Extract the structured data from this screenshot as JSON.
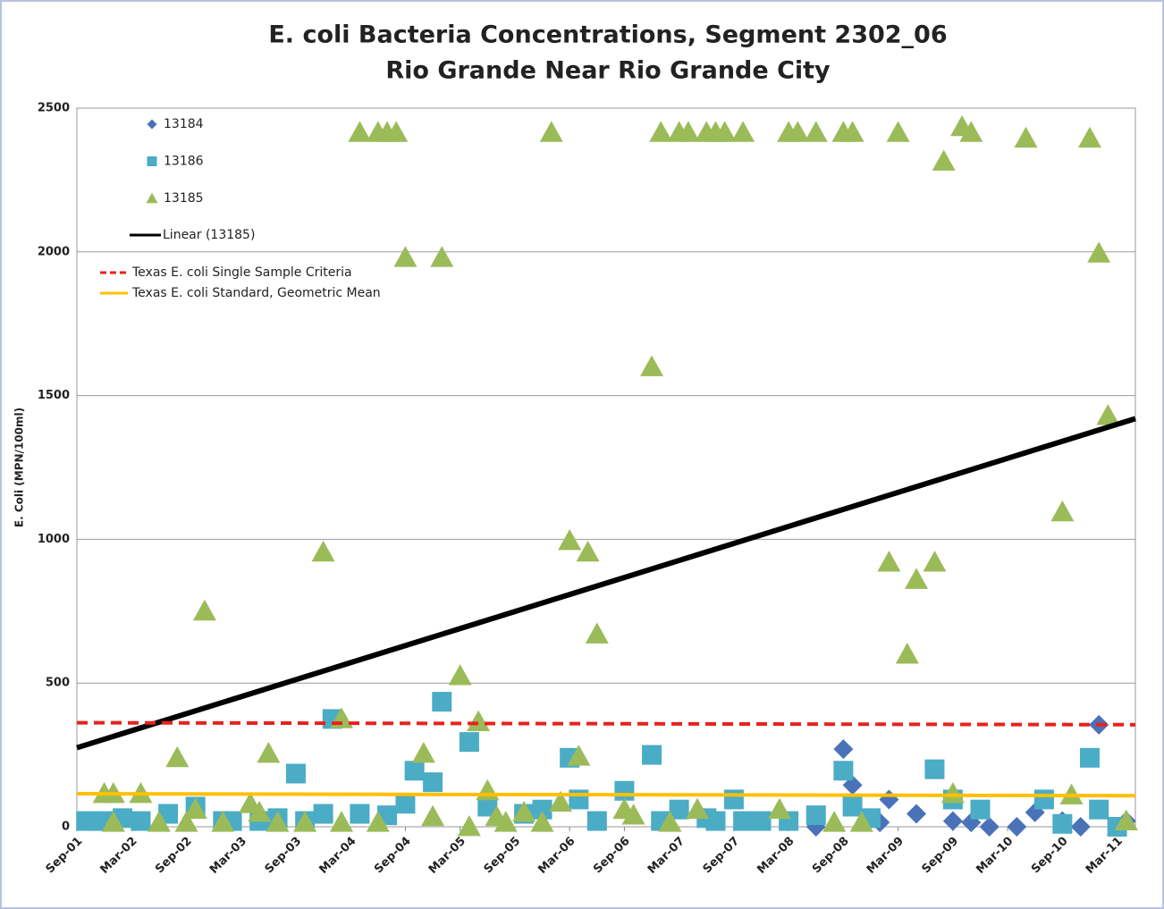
{
  "chart_data": {
    "type": "scatter",
    "title": "E. coli Bacteria Concentrations, Segment 2302_06",
    "subtitle": "Rio Grande Near Rio Grande City",
    "y_label": "E. Coli (MPN/100ml)",
    "xlim": [
      0,
      116
    ],
    "xticks": [
      {
        "value": 0,
        "label": "Sep-01"
      },
      {
        "value": 6,
        "label": "Mar-02"
      },
      {
        "value": 12,
        "label": "Sep-02"
      },
      {
        "value": 18,
        "label": "Mar-03"
      },
      {
        "value": 24,
        "label": "Sep-03"
      },
      {
        "value": 30,
        "label": "Mar-04"
      },
      {
        "value": 36,
        "label": "Sep-04"
      },
      {
        "value": 42,
        "label": "Mar-05"
      },
      {
        "value": 48,
        "label": "Sep-05"
      },
      {
        "value": 54,
        "label": "Mar-06"
      },
      {
        "value": 60,
        "label": "Sep-06"
      },
      {
        "value": 66,
        "label": "Mar-07"
      },
      {
        "value": 72,
        "label": "Sep-07"
      },
      {
        "value": 78,
        "label": "Mar-08"
      },
      {
        "value": 84,
        "label": "Sep-08"
      },
      {
        "value": 90,
        "label": "Mar-09"
      },
      {
        "value": 96,
        "label": "Sep-09"
      },
      {
        "value": 102,
        "label": "Mar-10"
      },
      {
        "value": 108,
        "label": "Sep-10"
      },
      {
        "value": 114,
        "label": "Mar-11"
      }
    ],
    "ylim": [
      0,
      2500
    ],
    "yticks": [
      0,
      500,
      1000,
      1500,
      2000,
      2500
    ],
    "grid": true,
    "series": [
      {
        "name": "13184",
        "color": "#4a72b8",
        "marker": "diamond",
        "x": [
          81,
          84,
          85,
          88,
          89,
          92,
          96,
          98,
          100,
          103,
          105,
          108,
          110,
          112,
          115
        ],
        "values": [
          0,
          270,
          145,
          15,
          95,
          45,
          20,
          15,
          0,
          0,
          50,
          20,
          0,
          355,
          20
        ]
      },
      {
        "name": "13186",
        "color": "#4bacc6",
        "marker": "square",
        "x": [
          1,
          3,
          5,
          7,
          10,
          13,
          16,
          17,
          20,
          22,
          24,
          25,
          27,
          28,
          31,
          34,
          36,
          37,
          39,
          40,
          43,
          45,
          49,
          51,
          54,
          55,
          57,
          60,
          63,
          64,
          66,
          69,
          70,
          72,
          73,
          75,
          78,
          81,
          84,
          85,
          87,
          94,
          96,
          99,
          106,
          108,
          111,
          112,
          114
        ],
        "values": [
          20,
          20,
          30,
          20,
          45,
          70,
          20,
          20,
          20,
          30,
          185,
          20,
          45,
          375,
          45,
          40,
          80,
          195,
          155,
          435,
          295,
          70,
          45,
          60,
          240,
          95,
          20,
          125,
          250,
          20,
          60,
          30,
          20,
          95,
          20,
          20,
          20,
          40,
          195,
          70,
          30,
          200,
          95,
          60,
          95,
          10,
          240,
          60,
          0
        ]
      },
      {
        "name": "13185",
        "color": "#9bbb59",
        "marker": "triangle",
        "x": [
          3,
          4,
          4,
          7,
          9,
          11,
          12,
          13,
          14,
          16,
          19,
          20,
          21,
          22,
          25,
          27,
          29,
          29,
          31,
          33,
          33,
          34,
          35,
          36,
          38,
          39,
          40,
          42,
          43,
          44,
          45,
          46,
          47,
          49,
          51,
          52,
          53,
          54,
          55,
          56,
          57,
          60,
          61,
          63,
          64,
          65,
          66,
          67,
          68,
          69,
          70,
          71,
          73,
          77,
          78,
          79,
          81,
          83,
          84,
          85,
          86,
          89,
          90,
          91,
          92,
          94,
          95,
          96,
          97,
          98,
          104,
          108,
          109,
          111,
          112,
          113,
          115
        ],
        "values": [
          115,
          115,
          15,
          115,
          15,
          240,
          15,
          60,
          750,
          15,
          80,
          50,
          255,
          15,
          15,
          955,
          15,
          375,
          2415,
          15,
          2415,
          2415,
          2415,
          1980,
          255,
          35,
          1980,
          525,
          0,
          365,
          125,
          35,
          15,
          50,
          15,
          2415,
          85,
          995,
          245,
          955,
          670,
          60,
          40,
          1600,
          2415,
          15,
          2415,
          2415,
          60,
          2415,
          2415,
          2415,
          2415,
          60,
          2415,
          2415,
          2415,
          15,
          2415,
          2415,
          15,
          920,
          2415,
          600,
          860,
          920,
          2315,
          115,
          2435,
          2415,
          2395,
          1095,
          110,
          2395,
          1995,
          1430,
          20
        ]
      },
      {
        "name": "Linear (13185)",
        "color": "#000000",
        "marker": "line",
        "line_style": "solid",
        "x": [
          0,
          116
        ],
        "values": [
          275,
          1420
        ]
      },
      {
        "name": "Texas E. coli Single Sample Criteria",
        "color": "#e8221c",
        "marker": "line",
        "line_style": "dashed",
        "x": [
          0,
          116
        ],
        "values": [
          362,
          355
        ]
      },
      {
        "name": "Texas E. coli Standard, Geometric Mean",
        "color": "#ffc000",
        "marker": "line",
        "line_style": "solid",
        "x": [
          0,
          116
        ],
        "values": [
          115,
          108
        ]
      }
    ]
  }
}
